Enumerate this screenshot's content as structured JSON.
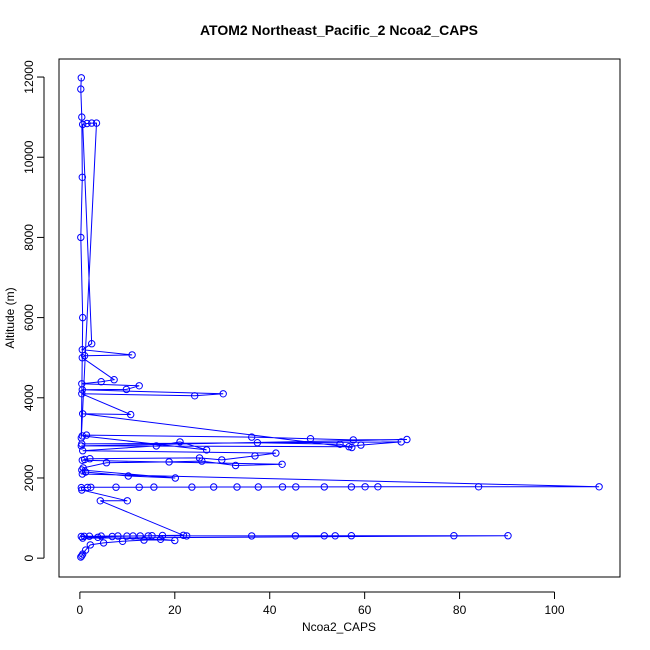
{
  "chart_data": {
    "type": "scatter",
    "title": "ATOM2 Northeast_Pacific_2 Ncoa2_CAPS",
    "xlabel": "Ncoa2_CAPS",
    "ylabel": "Altitude (m)",
    "xlim": [
      -4.4,
      113.8
    ],
    "ylim": [
      -470,
      12450
    ],
    "x_ticks": [
      0,
      20,
      40,
      60,
      80,
      100
    ],
    "y_ticks": [
      0,
      2000,
      4000,
      6000,
      8000,
      10000,
      12000
    ],
    "grid": false,
    "legend": "none",
    "colors": {
      "series": "#0000ff",
      "axis": "#000000"
    },
    "markers": "open-circle",
    "connected_by_lines": true,
    "series": [
      {
        "x": [
          0.2,
          0.4,
          0.6,
          1.2,
          2.2,
          5.0,
          9.0,
          13.5,
          17.0,
          20.0,
          0.3,
          0.9,
          2.0,
          4.5,
          8.0,
          11.2,
          14.4,
          22.5,
          36.2,
          45.4,
          51.5,
          53.8,
          57.2,
          78.8,
          90.2,
          0.6,
          3.8,
          6.8,
          9.9,
          12.7,
          15.2,
          17.4,
          21.8,
          4.3,
          10.0,
          0.4,
          0.3,
          1.6,
          2.3,
          7.6,
          12.5,
          15.6,
          23.6,
          28.2,
          33.1,
          37.6,
          42.7,
          45.5,
          51.5,
          57.2,
          60.1,
          62.8,
          84.0,
          109.4,
          0.5,
          1.2,
          10.2,
          20.1,
          0.4,
          0.7,
          5.6,
          18.8,
          25.7,
          32.8,
          42.6,
          0.5,
          1.0,
          2.1,
          25.2,
          29.9,
          36.9,
          41.3,
          0.6,
          16.1,
          21.1,
          26.7,
          0.5,
          1.4,
          36.2,
          48.6,
          57.6,
          68.9,
          0.3,
          56.7,
          59.2,
          67.7,
          0.4,
          37.4,
          54.8,
          57.3,
          0.6,
          10.7,
          0.4,
          24.2,
          30.2,
          0.5,
          9.8,
          12.5,
          0.4,
          4.5,
          7.2,
          0.5,
          1.0,
          11.0,
          0.5,
          2.5,
          0.6,
          1.5,
          2.5,
          3.5,
          0.3,
          0.6,
          0.2,
          0.5,
          0.4,
          0.2,
          0.3
        ],
        "y": [
          30,
          60,
          100,
          200,
          330,
          380,
          420,
          450,
          470,
          440,
          540,
          545,
          548,
          550,
          552,
          553,
          554,
          555,
          556,
          557,
          558,
          558,
          559,
          560,
          561,
          500,
          520,
          540,
          550,
          555,
          560,
          565,
          570,
          1430,
          1430,
          1700,
          1760,
          1765,
          1768,
          1770,
          1771,
          1772,
          1773,
          1774,
          1775,
          1776,
          1777,
          1777,
          1778,
          1778,
          1779,
          1779,
          1780,
          1780,
          2100,
          2150,
          2050,
          2000,
          2200,
          2250,
          2380,
          2400,
          2420,
          2310,
          2340,
          2440,
          2460,
          2480,
          2500,
          2450,
          2550,
          2620,
          2680,
          2800,
          2900,
          2700,
          3050,
          3070,
          3020,
          2980,
          2950,
          2960,
          2800,
          2780,
          2820,
          2900,
          2850,
          2880,
          2840,
          2760,
          3600,
          3580,
          4100,
          4050,
          4100,
          4200,
          4210,
          4300,
          4350,
          4400,
          4450,
          5000,
          5050,
          5070,
          5200,
          5350,
          10820,
          10840,
          10850,
          10850,
          3000,
          6000,
          8000,
          9500,
          11000,
          11700,
          11980
        ]
      }
    ]
  }
}
